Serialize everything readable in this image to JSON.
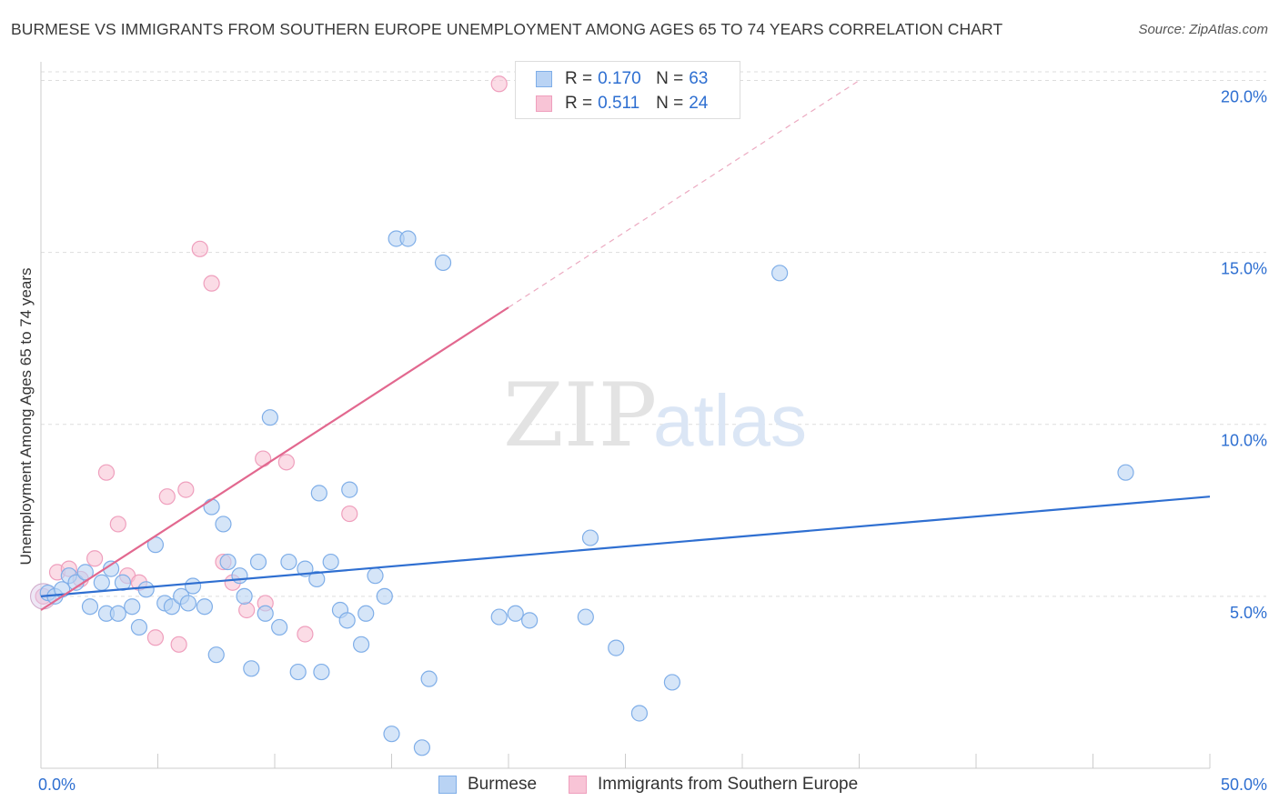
{
  "header": {
    "title": "BURMESE VS IMMIGRANTS FROM SOUTHERN EUROPE UNEMPLOYMENT AMONG AGES 65 TO 74 YEARS CORRELATION CHART",
    "source": "Source: ZipAtlas.com"
  },
  "watermark": {
    "zip": "ZIP",
    "atlas": "atlas"
  },
  "legend_top": [
    {
      "r_label": "R =",
      "r_value": "0.170",
      "n_label": "N =",
      "n_value": "63"
    },
    {
      "r_label": "R =",
      "r_value": "0.511",
      "n_label": "N =",
      "n_value": "24"
    }
  ],
  "chart_data": {
    "type": "scatter",
    "title": "BURMESE VS IMMIGRANTS FROM SOUTHERN EUROPE UNEMPLOYMENT AMONG AGES 65 TO 74 YEARS CORRELATION CHART",
    "xlabel": "",
    "ylabel": "Unemployment Among Ages 65 to 74 years",
    "xlim": [
      0,
      50
    ],
    "ylim": [
      0,
      20.7
    ],
    "x_tick_labels": [
      "0.0%",
      "50.0%"
    ],
    "y_ticks": [
      5,
      10,
      15,
      20
    ],
    "y_tick_labels": [
      "5.0%",
      "10.0%",
      "15.0%",
      "20.0%"
    ],
    "grid": true,
    "series": [
      {
        "name": "Burmese",
        "color": "#7faee8",
        "fill": "#b9d3f4",
        "r": "0.170",
        "n": "63",
        "trend": {
          "x": [
            0,
            50
          ],
          "y": [
            5.0,
            7.9
          ],
          "dashed_extension": false
        },
        "points": [
          [
            0.3,
            5.1
          ],
          [
            0.6,
            5.0
          ],
          [
            0.9,
            5.2
          ],
          [
            1.2,
            5.6
          ],
          [
            1.5,
            5.4
          ],
          [
            1.9,
            5.7
          ],
          [
            2.1,
            4.7
          ],
          [
            2.6,
            5.4
          ],
          [
            2.8,
            4.5
          ],
          [
            3.0,
            5.8
          ],
          [
            3.3,
            4.5
          ],
          [
            3.5,
            5.4
          ],
          [
            3.9,
            4.7
          ],
          [
            4.2,
            4.1
          ],
          [
            4.5,
            5.2
          ],
          [
            4.9,
            6.5
          ],
          [
            5.3,
            4.8
          ],
          [
            5.6,
            4.7
          ],
          [
            6.0,
            5.0
          ],
          [
            6.3,
            4.8
          ],
          [
            6.5,
            5.3
          ],
          [
            7.0,
            4.7
          ],
          [
            7.3,
            7.6
          ],
          [
            7.5,
            3.3
          ],
          [
            7.8,
            7.1
          ],
          [
            8.0,
            6.0
          ],
          [
            8.5,
            5.6
          ],
          [
            8.7,
            5.0
          ],
          [
            9.0,
            2.9
          ],
          [
            9.3,
            6.0
          ],
          [
            9.6,
            4.5
          ],
          [
            9.8,
            10.2
          ],
          [
            10.2,
            4.1
          ],
          [
            10.6,
            6.0
          ],
          [
            11.0,
            2.8
          ],
          [
            11.3,
            5.8
          ],
          [
            11.8,
            5.5
          ],
          [
            11.9,
            8.0
          ],
          [
            12.0,
            2.8
          ],
          [
            12.4,
            6.0
          ],
          [
            12.8,
            4.6
          ],
          [
            13.1,
            4.3
          ],
          [
            13.2,
            8.1
          ],
          [
            13.7,
            3.6
          ],
          [
            13.9,
            4.5
          ],
          [
            14.3,
            5.6
          ],
          [
            14.7,
            5.0
          ],
          [
            15.0,
            1.0
          ],
          [
            15.2,
            15.4
          ],
          [
            15.7,
            15.4
          ],
          [
            16.3,
            0.6
          ],
          [
            16.6,
            2.6
          ],
          [
            17.2,
            14.7
          ],
          [
            19.6,
            4.4
          ],
          [
            20.3,
            4.5
          ],
          [
            20.9,
            4.3
          ],
          [
            23.3,
            4.4
          ],
          [
            23.5,
            6.7
          ],
          [
            24.6,
            3.5
          ],
          [
            25.6,
            1.6
          ],
          [
            27.0,
            2.5
          ],
          [
            31.6,
            14.4
          ],
          [
            46.4,
            8.6
          ]
        ]
      },
      {
        "name": "Immigrants from Southern Europe",
        "color": "#ef9fbd",
        "fill": "#f8c4d6",
        "r": "0.511",
        "n": "24",
        "trend": {
          "x": [
            0,
            20
          ],
          "y": [
            4.6,
            13.4
          ],
          "dashed_extension": true,
          "dashed_to": [
            35,
            20.0
          ]
        },
        "points": [
          [
            0.1,
            5.0
          ],
          [
            0.7,
            5.7
          ],
          [
            1.2,
            5.8
          ],
          [
            1.7,
            5.5
          ],
          [
            2.3,
            6.1
          ],
          [
            2.8,
            8.6
          ],
          [
            3.3,
            7.1
          ],
          [
            3.7,
            5.6
          ],
          [
            4.2,
            5.4
          ],
          [
            4.9,
            3.8
          ],
          [
            5.4,
            7.9
          ],
          [
            5.9,
            3.6
          ],
          [
            6.2,
            8.1
          ],
          [
            6.8,
            15.1
          ],
          [
            7.3,
            14.1
          ],
          [
            7.8,
            6.0
          ],
          [
            8.2,
            5.4
          ],
          [
            8.8,
            4.6
          ],
          [
            9.5,
            9.0
          ],
          [
            9.6,
            4.8
          ],
          [
            10.5,
            8.9
          ],
          [
            11.3,
            3.9
          ],
          [
            13.2,
            7.4
          ],
          [
            19.6,
            19.9
          ]
        ]
      }
    ]
  },
  "legend_bottom": [
    {
      "label": "Burmese"
    },
    {
      "label": "Immigrants from Southern Europe"
    }
  ],
  "colors": {
    "blue_line": "#2f6fd1",
    "pink_line": "#e2688f",
    "tick_text": "#2e6fd1",
    "grid": "#dddddd"
  }
}
